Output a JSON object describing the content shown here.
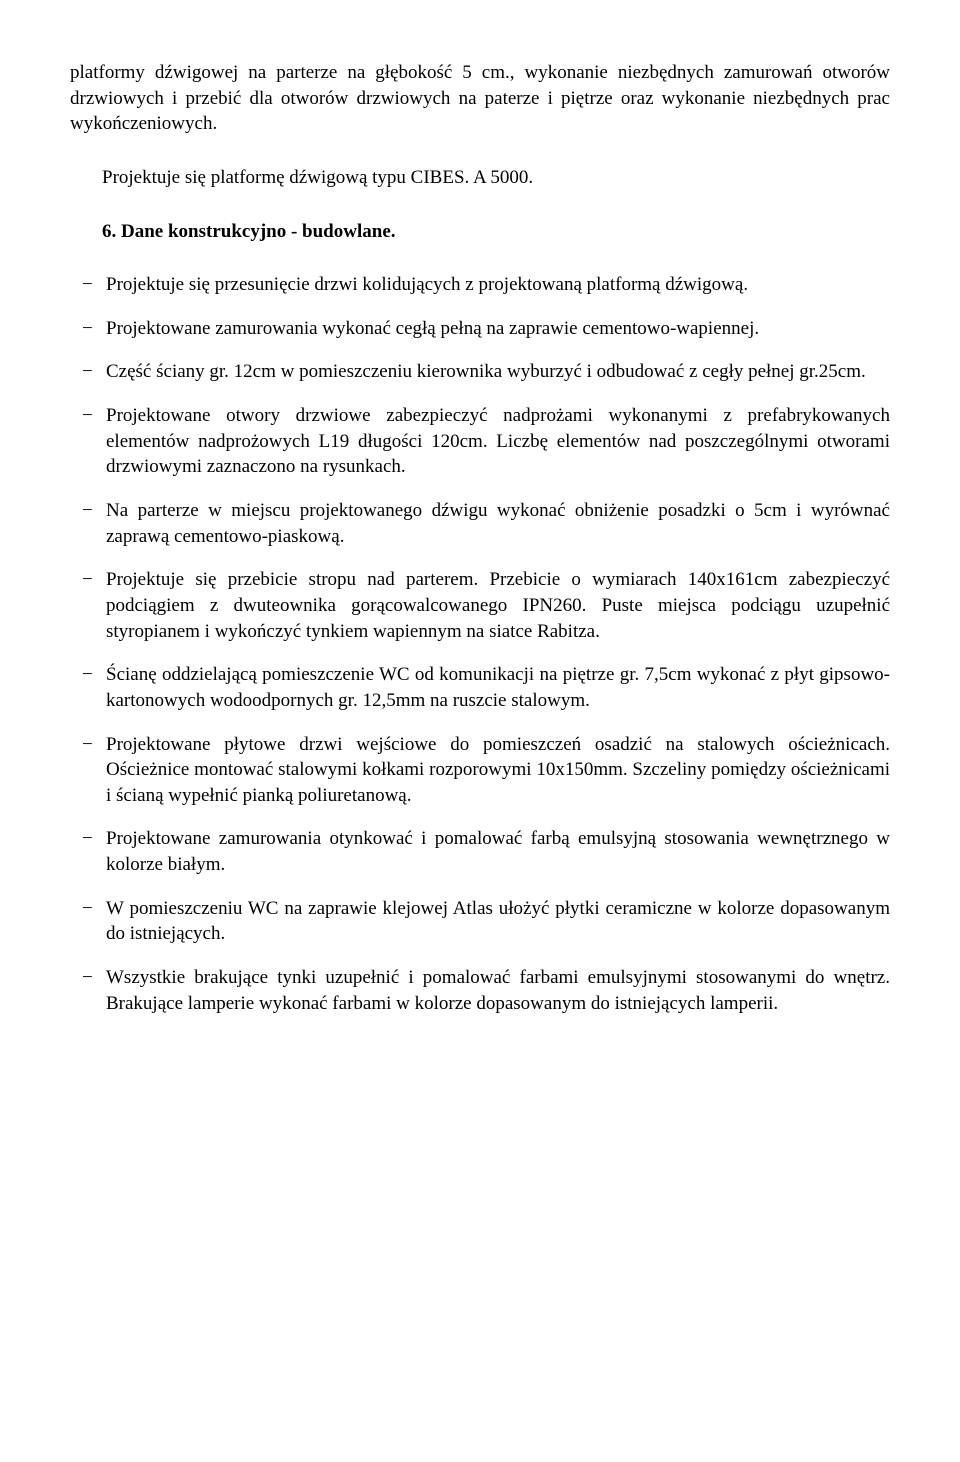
{
  "intro_para": "platformy dźwigowej na parterze na głębokość 5 cm., wykonanie niezbędnych zamurowań otworów drzwiowych i przebić dla otworów drzwiowych na paterze i piętrze oraz wykonanie niezbędnych prac wykończeniowych.",
  "indent_para": "Projektuje się platformę dźwigową typu CIBES. A 5000.",
  "section_heading": "6.   Dane konstrukcyjno - budowlane.",
  "items": [
    "Projektuje się przesunięcie drzwi kolidujących z projektowaną platformą dźwigową.",
    "Projektowane zamurowania wykonać cegłą pełną na zaprawie cementowo-wapiennej.",
    "Część ściany gr. 12cm w pomieszczeniu kierownika wyburzyć i odbudować z cegły pełnej gr.25cm.",
    "Projektowane otwory drzwiowe zabezpieczyć nadprożami wykonanymi z prefabrykowanych elementów nadprożowych L19 długości 120cm. Liczbę elementów nad poszczególnymi otworami drzwiowymi zaznaczono na rysunkach.",
    "Na parterze w miejscu projektowanego dźwigu wykonać obniżenie posadzki o 5cm i wyrównać zaprawą cementowo-piaskową.",
    "Projektuje się przebicie stropu nad parterem. Przebicie o wymiarach 140x161cm zabezpieczyć podciągiem z dwuteownika gorącowalcowanego IPN260. Puste miejsca podciągu uzupełnić styropianem i wykończyć tynkiem wapiennym na siatce Rabitza.",
    "Ścianę oddzielającą pomieszczenie WC od komunikacji na piętrze gr. 7,5cm wykonać z płyt gipsowo-kartonowych wodoodpornych  gr. 12,5mm na ruszcie stalowym.",
    "Projektowane płytowe drzwi wejściowe do pomieszczeń osadzić na stalowych ościeżnicach. Ościeżnice montować stalowymi kołkami rozporowymi 10x150mm. Szczeliny pomiędzy ościeżnicami i ścianą wypełnić pianką poliuretanową.",
    "Projektowane zamurowania otynkować i pomalować farbą emulsyjną stosowania wewnętrznego w kolorze białym.",
    "W pomieszczeniu WC na zaprawie klejowej Atlas ułożyć  płytki ceramiczne w kolorze dopasowanym do istniejących.",
    "Wszystkie brakujące  tynki uzupełnić i pomalować farbami emulsyjnymi stosowanymi do wnętrz. Brakujące lamperie wykonać farbami w kolorze dopasowanym do istniejących lamperii."
  ]
}
